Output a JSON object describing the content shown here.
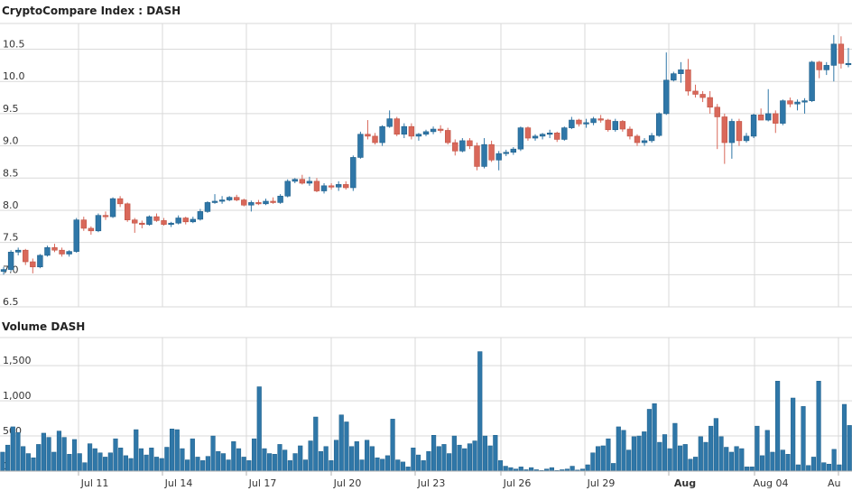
{
  "chart_data": [
    {
      "type": "candlestick",
      "title": "CryptoCompare Index : DASH",
      "ylim": [
        6.5,
        10.9
      ],
      "yticks": [
        6.5,
        7.0,
        7.5,
        8.0,
        8.5,
        9.0,
        9.5,
        10.0,
        10.5
      ],
      "ytick_labels": [
        "6.5",
        "7.0",
        "7.5",
        "8.0",
        "8.5",
        "9.0",
        "9.5",
        "10.0",
        "10.5"
      ],
      "xticks": [
        "Jul 11",
        "Jul 14",
        "Jul 17",
        "Jul 20",
        "Jul 23",
        "Jul 26",
        "Jul 29",
        "Aug",
        "Aug 04",
        "Au"
      ],
      "grid": true,
      "up_color": "#2f77a8",
      "down_color": "#d9685a",
      "candles": [
        [
          7.05,
          7.12,
          7.0,
          7.08
        ],
        [
          7.08,
          7.38,
          7.05,
          7.35
        ],
        [
          7.35,
          7.42,
          7.3,
          7.38
        ],
        [
          7.38,
          7.4,
          7.15,
          7.2
        ],
        [
          7.2,
          7.25,
          7.02,
          7.12
        ],
        [
          7.12,
          7.32,
          7.1,
          7.3
        ],
        [
          7.3,
          7.45,
          7.28,
          7.42
        ],
        [
          7.42,
          7.48,
          7.35,
          7.38
        ],
        [
          7.38,
          7.42,
          7.28,
          7.32
        ],
        [
          7.32,
          7.38,
          7.28,
          7.36
        ],
        [
          7.36,
          7.88,
          7.34,
          7.85
        ],
        [
          7.85,
          7.9,
          7.68,
          7.72
        ],
        [
          7.72,
          7.75,
          7.62,
          7.68
        ],
        [
          7.68,
          7.95,
          7.66,
          7.92
        ],
        [
          7.92,
          7.98,
          7.85,
          7.9
        ],
        [
          7.9,
          8.2,
          7.88,
          8.18
        ],
        [
          8.18,
          8.22,
          8.05,
          8.1
        ],
        [
          8.1,
          8.12,
          7.82,
          7.85
        ],
        [
          7.85,
          7.88,
          7.65,
          7.8
        ],
        [
          7.8,
          7.84,
          7.72,
          7.78
        ],
        [
          7.78,
          7.92,
          7.76,
          7.9
        ],
        [
          7.9,
          7.95,
          7.82,
          7.84
        ],
        [
          7.84,
          7.88,
          7.76,
          7.78
        ],
        [
          7.78,
          7.82,
          7.74,
          7.8
        ],
        [
          7.8,
          7.92,
          7.78,
          7.88
        ],
        [
          7.88,
          7.9,
          7.78,
          7.82
        ],
        [
          7.82,
          7.9,
          7.8,
          7.86
        ],
        [
          7.86,
          8.02,
          7.84,
          7.98
        ],
        [
          7.98,
          8.14,
          7.96,
          8.12
        ],
        [
          8.12,
          8.25,
          8.1,
          8.14
        ],
        [
          8.14,
          8.22,
          8.1,
          8.16
        ],
        [
          8.16,
          8.22,
          8.14,
          8.2
        ],
        [
          8.2,
          8.24,
          8.14,
          8.16
        ],
        [
          8.16,
          8.18,
          8.06,
          8.08
        ],
        [
          8.08,
          8.15,
          7.98,
          8.12
        ],
        [
          8.12,
          8.16,
          8.08,
          8.1
        ],
        [
          8.1,
          8.18,
          8.08,
          8.14
        ],
        [
          8.14,
          8.2,
          8.1,
          8.12
        ],
        [
          8.12,
          8.25,
          8.1,
          8.22
        ],
        [
          8.22,
          8.48,
          8.2,
          8.45
        ],
        [
          8.45,
          8.5,
          8.42,
          8.48
        ],
        [
          8.48,
          8.55,
          8.4,
          8.42
        ],
        [
          8.42,
          8.52,
          8.38,
          8.45
        ],
        [
          8.45,
          8.5,
          8.28,
          8.3
        ],
        [
          8.3,
          8.42,
          8.26,
          8.38
        ],
        [
          8.38,
          8.42,
          8.32,
          8.36
        ],
        [
          8.36,
          8.45,
          8.3,
          8.4
        ],
        [
          8.4,
          8.45,
          8.32,
          8.35
        ],
        [
          8.35,
          8.85,
          8.3,
          8.82
        ],
        [
          8.82,
          9.22,
          8.8,
          9.18
        ],
        [
          9.18,
          9.4,
          9.1,
          9.15
        ],
        [
          9.15,
          9.2,
          9.02,
          9.05
        ],
        [
          9.05,
          9.32,
          9.0,
          9.3
        ],
        [
          9.3,
          9.55,
          9.28,
          9.42
        ],
        [
          9.42,
          9.45,
          9.15,
          9.18
        ],
        [
          9.18,
          9.35,
          9.12,
          9.3
        ],
        [
          9.3,
          9.35,
          9.1,
          9.15
        ],
        [
          9.15,
          9.2,
          9.08,
          9.18
        ],
        [
          9.18,
          9.25,
          9.15,
          9.22
        ],
        [
          9.22,
          9.3,
          9.18,
          9.26
        ],
        [
          9.26,
          9.32,
          9.2,
          9.24
        ],
        [
          9.24,
          9.28,
          9.02,
          9.05
        ],
        [
          9.05,
          9.1,
          8.85,
          8.92
        ],
        [
          8.92,
          9.12,
          8.9,
          9.08
        ],
        [
          9.08,
          9.12,
          8.95,
          9.0
        ],
        [
          9.0,
          9.05,
          8.62,
          8.68
        ],
        [
          8.68,
          9.12,
          8.65,
          9.02
        ],
        [
          9.02,
          9.08,
          8.75,
          8.78
        ],
        [
          8.78,
          8.92,
          8.62,
          8.88
        ],
        [
          8.88,
          8.94,
          8.84,
          8.9
        ],
        [
          8.9,
          8.98,
          8.86,
          8.95
        ],
        [
          8.95,
          9.3,
          8.92,
          9.28
        ],
        [
          9.28,
          9.3,
          9.08,
          9.12
        ],
        [
          9.12,
          9.18,
          9.08,
          9.15
        ],
        [
          9.15,
          9.2,
          9.1,
          9.18
        ],
        [
          9.18,
          9.25,
          9.12,
          9.2
        ],
        [
          9.2,
          9.22,
          9.06,
          9.1
        ],
        [
          9.1,
          9.3,
          9.08,
          9.28
        ],
        [
          9.28,
          9.45,
          9.26,
          9.4
        ],
        [
          9.4,
          9.42,
          9.3,
          9.34
        ],
        [
          9.34,
          9.42,
          9.28,
          9.36
        ],
        [
          9.36,
          9.45,
          9.32,
          9.42
        ],
        [
          9.42,
          9.48,
          9.36,
          9.4
        ],
        [
          9.4,
          9.42,
          9.22,
          9.25
        ],
        [
          9.25,
          9.42,
          9.22,
          9.38
        ],
        [
          9.38,
          9.4,
          9.22,
          9.26
        ],
        [
          9.26,
          9.3,
          9.1,
          9.15
        ],
        [
          9.15,
          9.18,
          9.0,
          9.05
        ],
        [
          9.05,
          9.12,
          9.0,
          9.08
        ],
        [
          9.08,
          9.2,
          9.05,
          9.16
        ],
        [
          9.16,
          9.52,
          9.14,
          9.5
        ],
        [
          9.5,
          10.45,
          9.48,
          10.02
        ],
        [
          10.02,
          10.15,
          10.0,
          10.12
        ],
        [
          10.12,
          10.3,
          9.98,
          10.18
        ],
        [
          10.18,
          10.35,
          9.78,
          9.85
        ],
        [
          9.85,
          9.95,
          9.75,
          9.8
        ],
        [
          9.8,
          9.85,
          9.68,
          9.75
        ],
        [
          9.75,
          9.85,
          9.5,
          9.6
        ],
        [
          9.6,
          9.65,
          8.95,
          9.45
        ],
        [
          9.45,
          9.5,
          8.72,
          9.05
        ],
        [
          9.05,
          9.42,
          8.8,
          9.38
        ],
        [
          9.38,
          9.42,
          9.0,
          9.08
        ],
        [
          9.08,
          9.2,
          9.05,
          9.15
        ],
        [
          9.15,
          9.5,
          9.12,
          9.48
        ],
        [
          9.48,
          9.58,
          9.4,
          9.4
        ],
        [
          9.4,
          9.88,
          9.38,
          9.5
        ],
        [
          9.5,
          9.55,
          9.2,
          9.35
        ],
        [
          9.35,
          9.72,
          9.32,
          9.7
        ],
        [
          9.7,
          9.75,
          9.6,
          9.65
        ],
        [
          9.65,
          9.72,
          9.55,
          9.68
        ],
        [
          9.68,
          9.74,
          9.5,
          9.7
        ],
        [
          9.7,
          10.32,
          9.68,
          10.3
        ],
        [
          10.3,
          10.32,
          10.05,
          10.18
        ],
        [
          10.18,
          10.3,
          10.1,
          10.25
        ],
        [
          10.25,
          10.72,
          10.0,
          10.58
        ],
        [
          10.58,
          10.7,
          10.2,
          10.28
        ],
        [
          10.28,
          10.52,
          10.22,
          10.28
        ]
      ],
      "candle_x_range": [
        -0.5,
        116.5
      ]
    },
    {
      "type": "bar",
      "title": "Volume DASH",
      "ylim": [
        0,
        1900
      ],
      "yticks": [
        0,
        500,
        1000,
        1500
      ],
      "ytick_labels": [
        "0",
        "500",
        "1,000",
        "1,500"
      ],
      "bar_color": "#2f77a8",
      "grid": true,
      "values": [
        270,
        370,
        630,
        550,
        350,
        250,
        190,
        380,
        540,
        480,
        270,
        570,
        480,
        240,
        450,
        250,
        120,
        390,
        320,
        260,
        200,
        260,
        460,
        330,
        220,
        180,
        590,
        320,
        230,
        330,
        200,
        180,
        340,
        600,
        590,
        320,
        160,
        460,
        200,
        150,
        210,
        500,
        280,
        250,
        160,
        420,
        320,
        200,
        150,
        460,
        1200,
        320,
        250,
        240,
        380,
        300,
        150,
        250,
        360,
        160,
        430,
        770,
        280,
        350,
        150,
        440,
        800,
        700,
        350,
        420,
        160,
        440,
        350,
        190,
        170,
        220,
        740,
        160,
        130,
        60,
        330,
        230,
        150,
        280,
        510,
        350,
        380,
        250,
        500,
        370,
        320,
        390,
        430,
        1700,
        500,
        360,
        510,
        150,
        70,
        50,
        30,
        60,
        20,
        50,
        20,
        10,
        30,
        50,
        10,
        20,
        30,
        70,
        15,
        30,
        90,
        260,
        350,
        360,
        460,
        110,
        630,
        580,
        300,
        490,
        500,
        560,
        880,
        960,
        410,
        520,
        320,
        680,
        360,
        380,
        170,
        200,
        490,
        410,
        640,
        750,
        490,
        340,
        270,
        350,
        320,
        60,
        60,
        640,
        220,
        580,
        270,
        1280,
        300,
        240,
        1040,
        90,
        920,
        80,
        200,
        1280,
        120,
        100,
        310,
        90,
        950,
        650
      ]
    }
  ]
}
